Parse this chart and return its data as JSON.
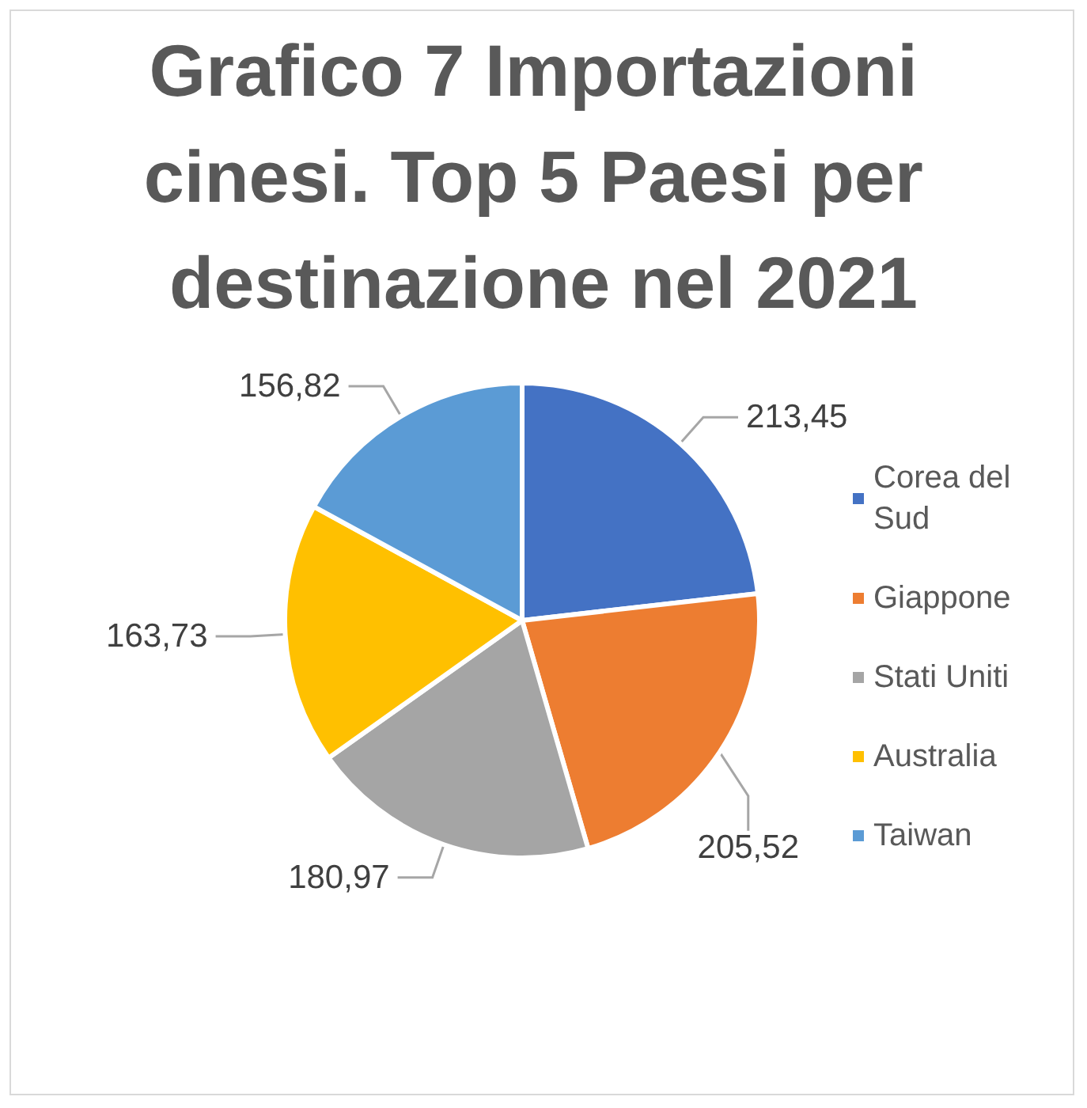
{
  "chart_data": {
    "type": "pie",
    "title": "Grafico 7 Importazioni cinesi. Top 5 Paesi per destinazione nel 2021",
    "categories": [
      "Corea del Sud",
      "Giappone",
      "Stati Uniti",
      "Australia",
      "Taiwan"
    ],
    "values": [
      213.45,
      205.52,
      180.97,
      163.73,
      156.82
    ],
    "colors": [
      "#4472c4",
      "#ed7d31",
      "#a5a5a5",
      "#ffc000",
      "#5b9bd5"
    ],
    "value_labels": [
      "213,45",
      "205,52",
      "180,97",
      "163,73",
      "156,82"
    ],
    "legend": "right"
  }
}
